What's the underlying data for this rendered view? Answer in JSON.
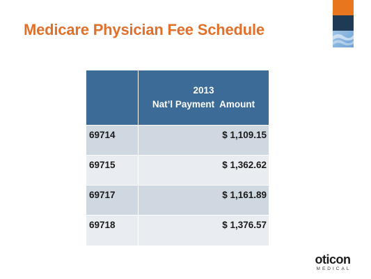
{
  "slide": {
    "title": "Medicare Physician Fee Schedule"
  },
  "table": {
    "header": {
      "code_column": "",
      "amount_line1": "2013",
      "amount_line2": "Nat’l Payment  Amount"
    },
    "rows": [
      {
        "code": "69714",
        "amount": "$ 1,109.15"
      },
      {
        "code": "69715",
        "amount": "$ 1,362.62"
      },
      {
        "code": "69717",
        "amount": "$ 1,161.89"
      },
      {
        "code": "69718",
        "amount": "$ 1,376.57"
      }
    ]
  },
  "logo": {
    "brand": "oticon",
    "sub": "MEDICAL"
  },
  "colors": {
    "title": "#e0702a",
    "header_bg": "#3d6b97",
    "row_odd": "#cfd8e1",
    "row_even": "#e9edf1",
    "deco_orange": "#e8761f",
    "deco_navy": "#1f3a55"
  }
}
